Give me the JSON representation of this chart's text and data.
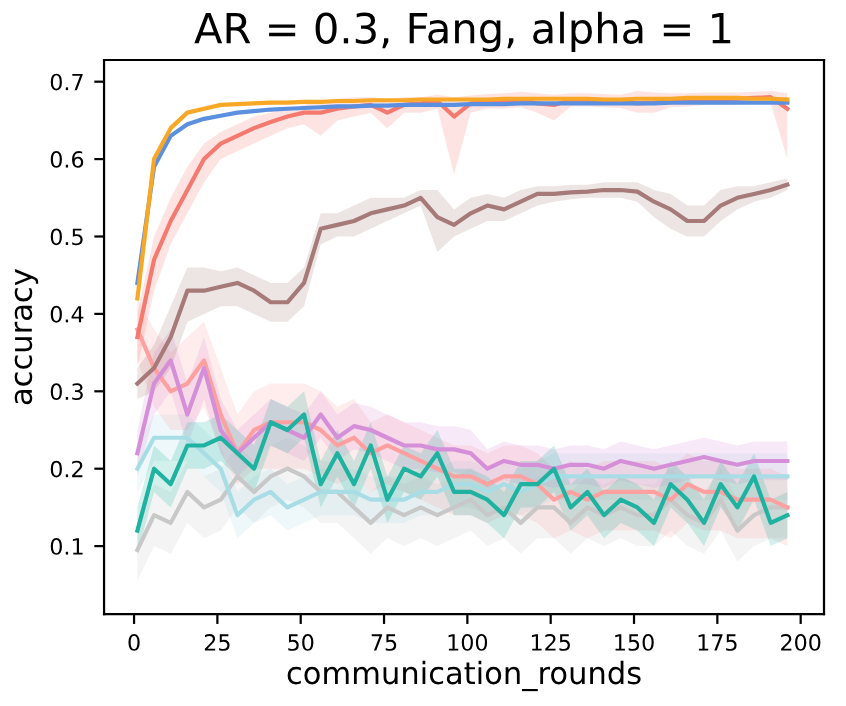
{
  "chart_data": {
    "type": "line",
    "title": "AR = 0.3, Fang, alpha = 1",
    "xlabel": "communication_rounds",
    "ylabel": "accuracy",
    "x": [
      1,
      6,
      11,
      16,
      21,
      26,
      31,
      36,
      41,
      46,
      51,
      56,
      61,
      66,
      71,
      76,
      81,
      86,
      91,
      96,
      101,
      106,
      111,
      116,
      121,
      126,
      131,
      136,
      141,
      146,
      151,
      156,
      161,
      166,
      171,
      176,
      181,
      186,
      191,
      196
    ],
    "xlim": [
      -9,
      207
    ],
    "ylim": [
      0.012,
      0.728
    ],
    "xticks": [
      0,
      25,
      50,
      75,
      100,
      125,
      150,
      175,
      200
    ],
    "yticks": [
      0.1,
      0.2,
      0.3,
      0.4,
      0.5,
      0.6,
      0.7
    ],
    "grid": false,
    "series": [
      {
        "color": "#c8c8c8",
        "values": [
          0.095,
          0.14,
          0.13,
          0.17,
          0.15,
          0.16,
          0.19,
          0.17,
          0.19,
          0.2,
          0.19,
          0.17,
          0.17,
          0.15,
          0.13,
          0.15,
          0.14,
          0.15,
          0.14,
          0.15,
          0.16,
          0.14,
          0.15,
          0.13,
          0.15,
          0.15,
          0.13,
          0.15,
          0.14,
          0.15,
          0.14,
          0.14,
          0.16,
          0.14,
          0.13,
          0.16,
          0.12,
          0.14,
          0.15,
          0.15
        ],
        "lower": [
          0.055,
          0.1,
          0.09,
          0.13,
          0.11,
          0.12,
          0.15,
          0.13,
          0.15,
          0.16,
          0.15,
          0.13,
          0.13,
          0.11,
          0.09,
          0.11,
          0.1,
          0.11,
          0.1,
          0.11,
          0.12,
          0.1,
          0.11,
          0.09,
          0.11,
          0.11,
          0.09,
          0.11,
          0.1,
          0.11,
          0.1,
          0.1,
          0.12,
          0.1,
          0.09,
          0.12,
          0.08,
          0.1,
          0.11,
          0.11
        ],
        "upper": [
          0.135,
          0.18,
          0.17,
          0.21,
          0.19,
          0.2,
          0.23,
          0.21,
          0.23,
          0.24,
          0.23,
          0.21,
          0.21,
          0.19,
          0.17,
          0.19,
          0.18,
          0.19,
          0.18,
          0.19,
          0.2,
          0.18,
          0.19,
          0.17,
          0.19,
          0.19,
          0.17,
          0.19,
          0.18,
          0.19,
          0.18,
          0.18,
          0.2,
          0.18,
          0.17,
          0.2,
          0.16,
          0.18,
          0.19,
          0.19
        ]
      },
      {
        "color": "#a8dde5",
        "values": [
          0.2,
          0.24,
          0.24,
          0.24,
          0.22,
          0.2,
          0.14,
          0.16,
          0.17,
          0.15,
          0.16,
          0.17,
          0.17,
          0.17,
          0.16,
          0.16,
          0.16,
          0.17,
          0.17,
          0.18,
          0.18,
          0.17,
          0.18,
          0.17,
          0.18,
          0.19,
          0.19,
          0.19,
          0.19,
          0.19,
          0.19,
          0.19,
          0.19,
          0.19,
          0.19,
          0.19,
          0.19,
          0.19,
          0.19,
          0.19
        ],
        "lower": [
          0.17,
          0.21,
          0.21,
          0.21,
          0.19,
          0.17,
          0.11,
          0.13,
          0.14,
          0.12,
          0.13,
          0.14,
          0.14,
          0.14,
          0.13,
          0.13,
          0.13,
          0.14,
          0.14,
          0.15,
          0.15,
          0.14,
          0.15,
          0.14,
          0.15,
          0.16,
          0.16,
          0.16,
          0.16,
          0.16,
          0.16,
          0.16,
          0.16,
          0.16,
          0.16,
          0.16,
          0.16,
          0.16,
          0.16,
          0.16
        ],
        "upper": [
          0.23,
          0.27,
          0.27,
          0.27,
          0.25,
          0.23,
          0.17,
          0.19,
          0.2,
          0.18,
          0.19,
          0.2,
          0.2,
          0.2,
          0.19,
          0.19,
          0.19,
          0.2,
          0.2,
          0.21,
          0.21,
          0.2,
          0.21,
          0.2,
          0.21,
          0.22,
          0.22,
          0.22,
          0.22,
          0.22,
          0.22,
          0.22,
          0.22,
          0.22,
          0.22,
          0.22,
          0.22,
          0.22,
          0.22,
          0.22
        ]
      },
      {
        "color": "#ffa0a0",
        "values": [
          0.38,
          0.33,
          0.3,
          0.31,
          0.34,
          0.27,
          0.22,
          0.25,
          0.26,
          0.26,
          0.26,
          0.25,
          0.23,
          0.24,
          0.22,
          0.23,
          0.22,
          0.21,
          0.2,
          0.19,
          0.19,
          0.18,
          0.19,
          0.19,
          0.18,
          0.16,
          0.17,
          0.16,
          0.17,
          0.17,
          0.17,
          0.17,
          0.16,
          0.18,
          0.17,
          0.17,
          0.16,
          0.16,
          0.16,
          0.15
        ],
        "lower": [
          0.34,
          0.28,
          0.25,
          0.25,
          0.28,
          0.22,
          0.18,
          0.2,
          0.2,
          0.2,
          0.2,
          0.19,
          0.18,
          0.19,
          0.17,
          0.18,
          0.17,
          0.16,
          0.15,
          0.14,
          0.14,
          0.13,
          0.14,
          0.14,
          0.13,
          0.11,
          0.12,
          0.11,
          0.12,
          0.12,
          0.12,
          0.12,
          0.11,
          0.13,
          0.12,
          0.12,
          0.11,
          0.11,
          0.11,
          0.1
        ],
        "upper": [
          0.42,
          0.38,
          0.35,
          0.37,
          0.39,
          0.33,
          0.27,
          0.3,
          0.31,
          0.31,
          0.31,
          0.3,
          0.28,
          0.29,
          0.26,
          0.27,
          0.26,
          0.25,
          0.24,
          0.23,
          0.23,
          0.22,
          0.23,
          0.23,
          0.22,
          0.2,
          0.21,
          0.2,
          0.21,
          0.21,
          0.21,
          0.21,
          0.2,
          0.22,
          0.21,
          0.21,
          0.2,
          0.2,
          0.2,
          0.19
        ]
      },
      {
        "color": "#d58fd8",
        "values": [
          0.22,
          0.31,
          0.34,
          0.27,
          0.33,
          0.25,
          0.22,
          0.24,
          0.26,
          0.25,
          0.24,
          0.27,
          0.24,
          0.255,
          0.25,
          0.24,
          0.23,
          0.23,
          0.225,
          0.225,
          0.22,
          0.2,
          0.21,
          0.205,
          0.205,
          0.2,
          0.205,
          0.205,
          0.2,
          0.21,
          0.205,
          0.2,
          0.205,
          0.21,
          0.215,
          0.21,
          0.205,
          0.21,
          0.21,
          0.21
        ],
        "lower": [
          0.19,
          0.27,
          0.3,
          0.23,
          0.29,
          0.22,
          0.19,
          0.21,
          0.23,
          0.22,
          0.21,
          0.24,
          0.21,
          0.225,
          0.22,
          0.21,
          0.2,
          0.2,
          0.195,
          0.195,
          0.19,
          0.175,
          0.185,
          0.18,
          0.18,
          0.175,
          0.18,
          0.18,
          0.175,
          0.185,
          0.18,
          0.175,
          0.18,
          0.185,
          0.19,
          0.185,
          0.18,
          0.185,
          0.185,
          0.185
        ],
        "upper": [
          0.25,
          0.35,
          0.38,
          0.31,
          0.37,
          0.29,
          0.25,
          0.27,
          0.29,
          0.28,
          0.27,
          0.3,
          0.27,
          0.285,
          0.28,
          0.27,
          0.26,
          0.26,
          0.255,
          0.255,
          0.25,
          0.225,
          0.235,
          0.23,
          0.23,
          0.225,
          0.23,
          0.23,
          0.225,
          0.235,
          0.23,
          0.225,
          0.23,
          0.235,
          0.24,
          0.235,
          0.23,
          0.235,
          0.235,
          0.235
        ]
      },
      {
        "color": "#20b2a0",
        "values": [
          0.12,
          0.2,
          0.18,
          0.23,
          0.23,
          0.24,
          0.22,
          0.2,
          0.26,
          0.25,
          0.27,
          0.18,
          0.22,
          0.18,
          0.23,
          0.16,
          0.2,
          0.19,
          0.22,
          0.17,
          0.17,
          0.16,
          0.14,
          0.18,
          0.18,
          0.2,
          0.15,
          0.17,
          0.14,
          0.16,
          0.15,
          0.13,
          0.18,
          0.16,
          0.13,
          0.18,
          0.15,
          0.19,
          0.13,
          0.14
        ],
        "lower": [
          0.09,
          0.17,
          0.15,
          0.2,
          0.2,
          0.21,
          0.19,
          0.17,
          0.23,
          0.22,
          0.24,
          0.15,
          0.19,
          0.15,
          0.2,
          0.13,
          0.17,
          0.16,
          0.19,
          0.14,
          0.14,
          0.13,
          0.11,
          0.15,
          0.15,
          0.17,
          0.12,
          0.14,
          0.11,
          0.13,
          0.12,
          0.1,
          0.15,
          0.13,
          0.1,
          0.15,
          0.12,
          0.16,
          0.1,
          0.11
        ],
        "upper": [
          0.15,
          0.23,
          0.21,
          0.26,
          0.26,
          0.27,
          0.25,
          0.23,
          0.29,
          0.28,
          0.3,
          0.21,
          0.25,
          0.21,
          0.26,
          0.19,
          0.23,
          0.22,
          0.25,
          0.2,
          0.2,
          0.19,
          0.17,
          0.21,
          0.21,
          0.23,
          0.18,
          0.2,
          0.17,
          0.19,
          0.18,
          0.16,
          0.21,
          0.19,
          0.16,
          0.21,
          0.18,
          0.22,
          0.16,
          0.17
        ]
      },
      {
        "color": "#a57a78",
        "values": [
          0.31,
          0.33,
          0.37,
          0.43,
          0.43,
          0.435,
          0.44,
          0.43,
          0.415,
          0.415,
          0.44,
          0.51,
          0.515,
          0.52,
          0.53,
          0.535,
          0.54,
          0.55,
          0.525,
          0.515,
          0.53,
          0.54,
          0.535,
          0.545,
          0.555,
          0.555,
          0.557,
          0.558,
          0.56,
          0.56,
          0.558,
          0.545,
          0.535,
          0.52,
          0.52,
          0.54,
          0.55,
          0.555,
          0.56,
          0.567
        ],
        "lower": [
          0.29,
          0.3,
          0.33,
          0.39,
          0.4,
          0.41,
          0.41,
          0.4,
          0.39,
          0.39,
          0.41,
          0.49,
          0.5,
          0.5,
          0.51,
          0.52,
          0.53,
          0.54,
          0.48,
          0.5,
          0.51,
          0.52,
          0.52,
          0.53,
          0.54,
          0.545,
          0.548,
          0.55,
          0.55,
          0.55,
          0.545,
          0.525,
          0.51,
          0.5,
          0.5,
          0.52,
          0.535,
          0.545,
          0.55,
          0.56
        ],
        "upper": [
          0.33,
          0.36,
          0.41,
          0.46,
          0.46,
          0.455,
          0.46,
          0.45,
          0.44,
          0.44,
          0.46,
          0.53,
          0.53,
          0.54,
          0.55,
          0.55,
          0.55,
          0.56,
          0.56,
          0.535,
          0.55,
          0.555,
          0.55,
          0.56,
          0.565,
          0.565,
          0.567,
          0.567,
          0.57,
          0.57,
          0.57,
          0.56,
          0.555,
          0.54,
          0.54,
          0.56,
          0.565,
          0.565,
          0.57,
          0.575
        ]
      },
      {
        "color": "#f47a70",
        "values": [
          0.37,
          0.47,
          0.52,
          0.56,
          0.6,
          0.62,
          0.63,
          0.64,
          0.648,
          0.655,
          0.66,
          0.66,
          0.665,
          0.668,
          0.67,
          0.66,
          0.67,
          0.672,
          0.675,
          0.655,
          0.672,
          0.674,
          0.675,
          0.676,
          0.672,
          0.67,
          0.676,
          0.676,
          0.675,
          0.674,
          0.672,
          0.673,
          0.675,
          0.676,
          0.677,
          0.677,
          0.678,
          0.679,
          0.68,
          0.665
        ],
        "lower": [
          0.33,
          0.43,
          0.49,
          0.53,
          0.57,
          0.6,
          0.61,
          0.62,
          0.63,
          0.64,
          0.645,
          0.63,
          0.65,
          0.655,
          0.66,
          0.64,
          0.66,
          0.66,
          0.665,
          0.58,
          0.66,
          0.665,
          0.665,
          0.667,
          0.66,
          0.65,
          0.668,
          0.668,
          0.667,
          0.666,
          0.66,
          0.66,
          0.667,
          0.668,
          0.67,
          0.67,
          0.67,
          0.672,
          0.672,
          0.6
        ],
        "upper": [
          0.4,
          0.5,
          0.55,
          0.59,
          0.62,
          0.635,
          0.645,
          0.655,
          0.66,
          0.665,
          0.67,
          0.675,
          0.678,
          0.68,
          0.68,
          0.678,
          0.68,
          0.68,
          0.683,
          0.68,
          0.682,
          0.684,
          0.685,
          0.687,
          0.685,
          0.683,
          0.685,
          0.685,
          0.684,
          0.683,
          0.688,
          0.686,
          0.685,
          0.685,
          0.686,
          0.686,
          0.686,
          0.687,
          0.688,
          0.685
        ]
      },
      {
        "color": "#5b8fe0",
        "values": [
          0.44,
          0.59,
          0.63,
          0.645,
          0.652,
          0.656,
          0.66,
          0.662,
          0.664,
          0.665,
          0.666,
          0.667,
          0.668,
          0.668,
          0.669,
          0.669,
          0.67,
          0.67,
          0.67,
          0.67,
          0.671,
          0.671,
          0.671,
          0.672,
          0.672,
          0.672,
          0.672,
          0.672,
          0.672,
          0.672,
          0.672,
          0.672,
          0.673,
          0.673,
          0.673,
          0.673,
          0.673,
          0.673,
          0.673,
          0.673
        ]
      },
      {
        "color": "#f8a825",
        "values": [
          0.42,
          0.6,
          0.64,
          0.66,
          0.665,
          0.67,
          0.671,
          0.672,
          0.673,
          0.673,
          0.674,
          0.674,
          0.675,
          0.675,
          0.676,
          0.676,
          0.676,
          0.677,
          0.677,
          0.677,
          0.677,
          0.677,
          0.678,
          0.678,
          0.678,
          0.678,
          0.678,
          0.678,
          0.677,
          0.677,
          0.678,
          0.678,
          0.678,
          0.679,
          0.679,
          0.679,
          0.679,
          0.678,
          0.678,
          0.677
        ]
      }
    ]
  }
}
